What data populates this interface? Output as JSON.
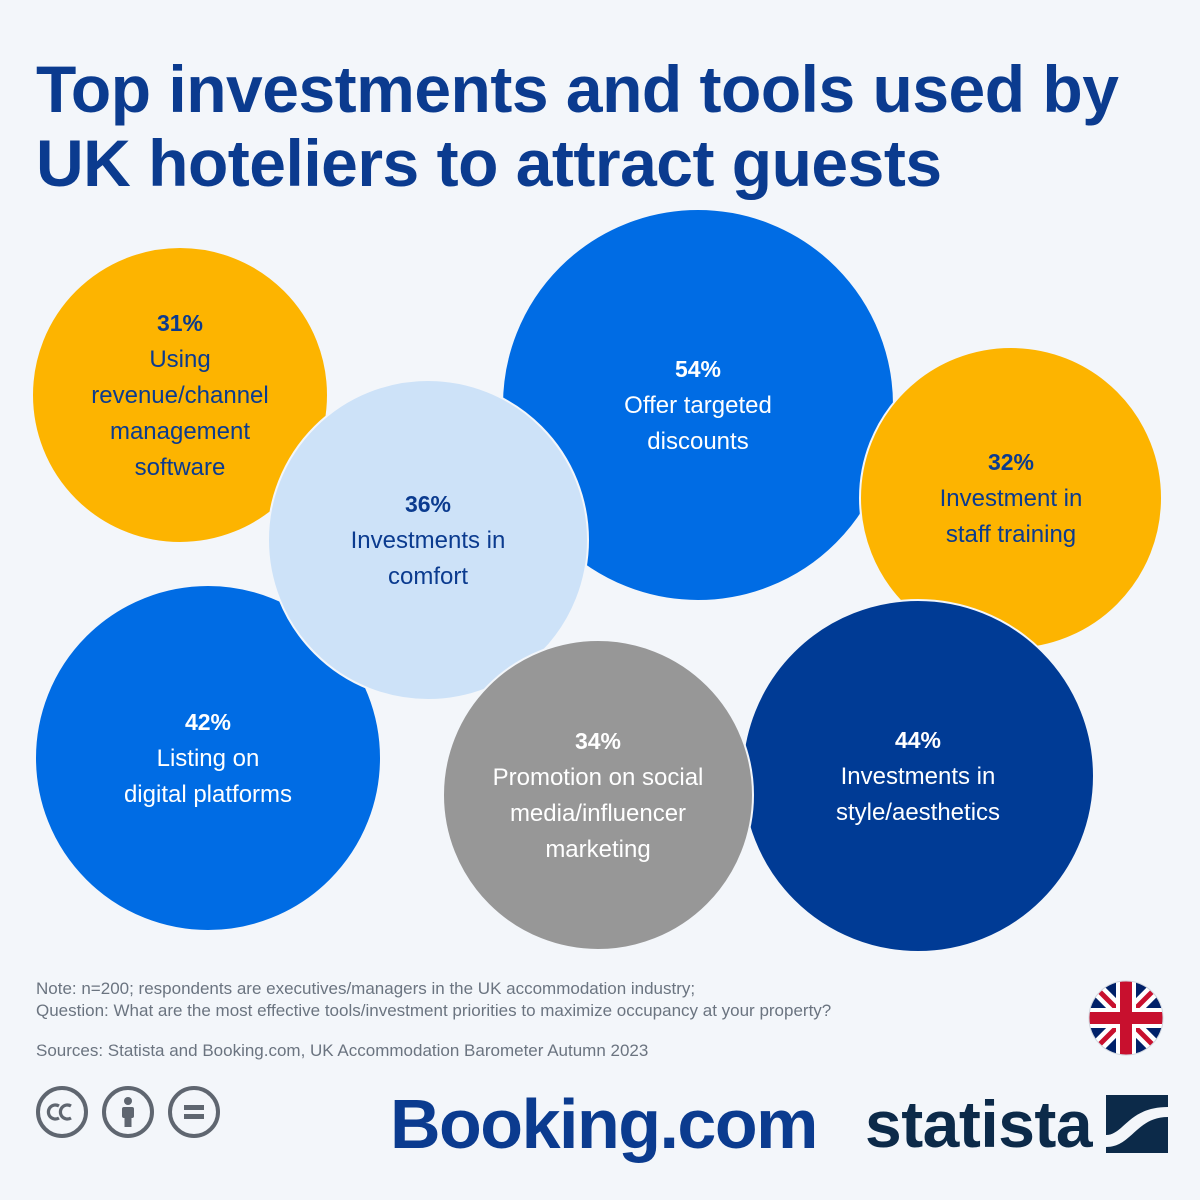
{
  "title_lines": [
    "Top investments and tools used by",
    "UK hoteliers to attract guests"
  ],
  "chart_data": {
    "type": "bubble",
    "unit": "%",
    "items": [
      {
        "value": 31,
        "label_lines": [
          "Using",
          "revenue/channel",
          "management",
          "software"
        ],
        "color": "#fdb400"
      },
      {
        "value": 54,
        "label_lines": [
          "Offer targeted",
          "discounts"
        ],
        "color": "#006ce4"
      },
      {
        "value": 36,
        "label_lines": [
          "Investments in",
          "comfort"
        ],
        "color": "#cde2f8"
      },
      {
        "value": 32,
        "label_lines": [
          "Investment in",
          "staff training"
        ],
        "color": "#fdb400"
      },
      {
        "value": 42,
        "label_lines": [
          "Listing on",
          "digital platforms"
        ],
        "color": "#006ce4"
      },
      {
        "value": 34,
        "label_lines": [
          "Promotion on social",
          "media/influencer",
          "marketing"
        ],
        "color": "#979797"
      },
      {
        "value": 44,
        "label_lines": [
          "Investments in",
          "style/aesthetics"
        ],
        "color": "#003b95"
      }
    ]
  },
  "note_lines": [
    "Note: n=200; respondents are executives/managers in the UK accommodation industry;",
    "Question: What are the most effective tools/investment priorities to maximize occupancy at your property?"
  ],
  "source": "Sources: Statista and Booking.com, UK Accommodation Barometer Autumn 2023",
  "logos": {
    "booking": "Booking.com",
    "statista": "statista"
  },
  "icons": [
    "cc-icon",
    "by-icon",
    "nd-icon",
    "uk-flag-icon"
  ]
}
